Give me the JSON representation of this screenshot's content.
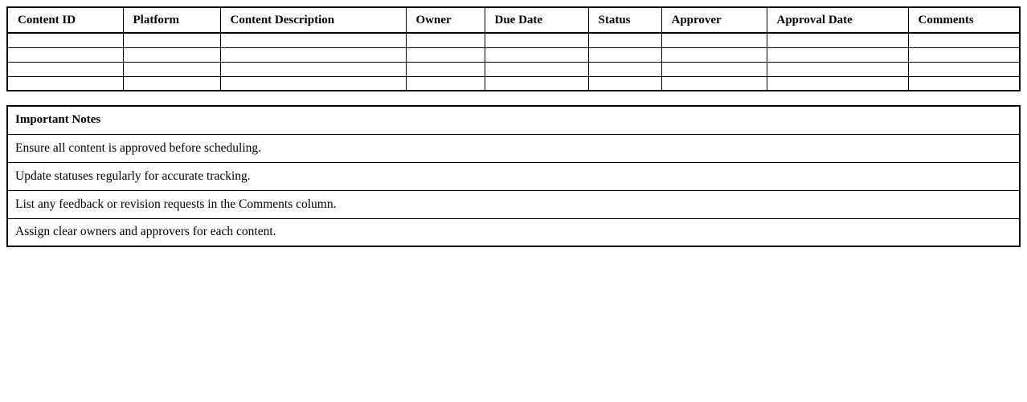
{
  "colors": {
    "background": "#ffffff",
    "border": "#000000",
    "text": "#000000"
  },
  "content_table": {
    "headers": [
      "Content ID",
      "Platform",
      "Content Description",
      "Owner",
      "Due Date",
      "Status",
      "Approver",
      "Approval Date",
      "Comments"
    ],
    "rows": [
      [
        "",
        "",
        "",
        "",
        "",
        "",
        "",
        "",
        ""
      ],
      [
        "",
        "",
        "",
        "",
        "",
        "",
        "",
        "",
        ""
      ],
      [
        "",
        "",
        "",
        "",
        "",
        "",
        "",
        "",
        ""
      ],
      [
        "",
        "",
        "",
        "",
        "",
        "",
        "",
        "",
        ""
      ]
    ]
  },
  "notes_table": {
    "title": "Important Notes",
    "notes": [
      "Ensure all content is approved before scheduling.",
      "Update statuses regularly for accurate tracking.",
      "List any feedback or revision requests in the Comments column.",
      "Assign clear owners and approvers for each content."
    ]
  }
}
